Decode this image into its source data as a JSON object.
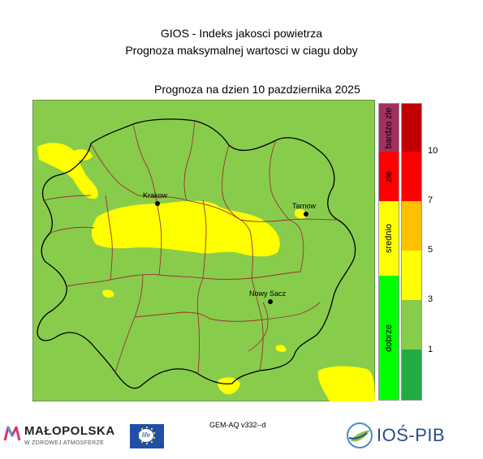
{
  "header": {
    "title_line1": "GIOS - Indeks jakosci powietrza",
    "title_line2": "Prognoza maksymalnej wartosci w ciagu doby",
    "forecast_label": "Prognoza na dzien  10 pazdziernika 2025"
  },
  "map": {
    "cities": [
      {
        "name": "Krakow"
      },
      {
        "name": "Tarnow"
      },
      {
        "name": "Nowy Sacz"
      }
    ],
    "fill_colors": {
      "background": "#88cc4c",
      "medium": "#ffff00",
      "border_outer": "#000000",
      "border_inner": "#993333"
    }
  },
  "legend": {
    "categories": [
      {
        "label": "bardzo zle",
        "color": "#a33060"
      },
      {
        "label": "zle",
        "color": "#ff0000"
      },
      {
        "label": "srednio",
        "color": "#ffff00"
      },
      {
        "label": "dobrze",
        "color": "#00ff00"
      }
    ],
    "scale_colors": [
      "#c00000",
      "#ff0000",
      "#ffc000",
      "#ffff00",
      "#88cc4c",
      "#22aa44"
    ],
    "ticks": [
      "10",
      "7",
      "5",
      "3",
      "1"
    ]
  },
  "footer": {
    "model": "GEM-AQ v332--d",
    "malopolska_name": "MAŁOPOLSKA",
    "malopolska_tagline": "W ZDROWEJ ATMOSFERZE",
    "eu_life": "life",
    "ios_name": "IOŚ-PIB"
  }
}
